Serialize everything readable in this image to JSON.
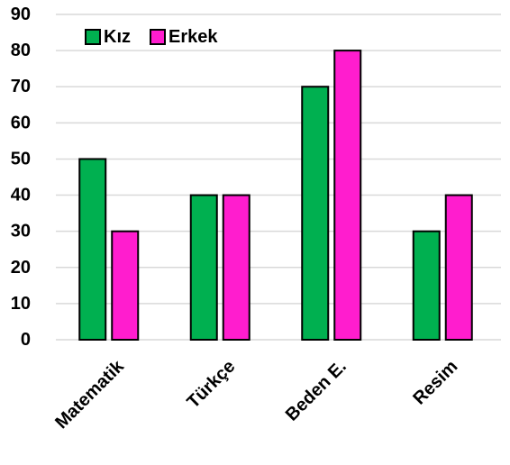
{
  "chart_data": {
    "type": "bar",
    "title": "",
    "xlabel": "",
    "ylabel": "",
    "categories": [
      "Matematik",
      "Türkçe",
      "Beden E.",
      "Resim"
    ],
    "series": [
      {
        "name": "Kız",
        "color": "#00b050",
        "values": [
          50,
          40,
          70,
          30
        ]
      },
      {
        "name": "Erkek",
        "color": "#ff1dce",
        "values": [
          30,
          40,
          80,
          40
        ]
      }
    ],
    "ylim": [
      0,
      90
    ],
    "yticks": [
      0,
      10,
      20,
      30,
      40,
      50,
      60,
      70,
      80,
      90
    ],
    "grid": true,
    "legend_position": "top-left"
  }
}
